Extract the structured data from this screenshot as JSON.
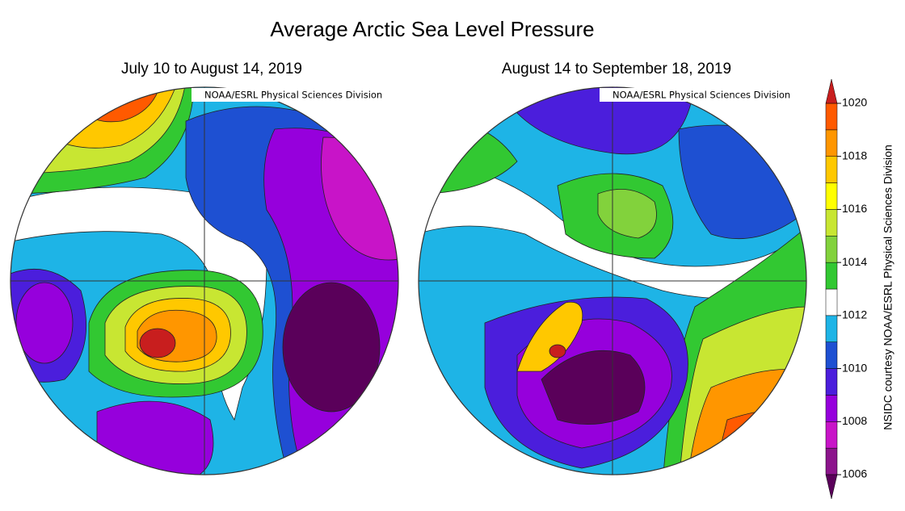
{
  "header": {
    "title": "Average Arctic Sea Level Pressure"
  },
  "maps": [
    {
      "subtitle": "July 10 to August 14, 2019",
      "credit": "NOAA/ESRL Physical Sciences Division"
    },
    {
      "subtitle": "August 14 to September 18, 2019",
      "credit": "NOAA/ESRL Physical Sciences Division"
    }
  ],
  "colorbar": {
    "ticks": [
      1006,
      1008,
      1010,
      1012,
      1014,
      1016,
      1018,
      1020
    ],
    "colors": [
      "#5a005a",
      "#8c148c",
      "#c814c8",
      "#9600dc",
      "#4b1edc",
      "#1e50d2",
      "#1eb4e6",
      "#ffffff",
      "#32c832",
      "#82d23c",
      "#c8e632",
      "#ffff00",
      "#ffc800",
      "#ff9600",
      "#ff5a00",
      "#c81e1e"
    ]
  },
  "side_credit": "NSIDC courtesy NOAA/ESRL Physical Sciences Division"
}
